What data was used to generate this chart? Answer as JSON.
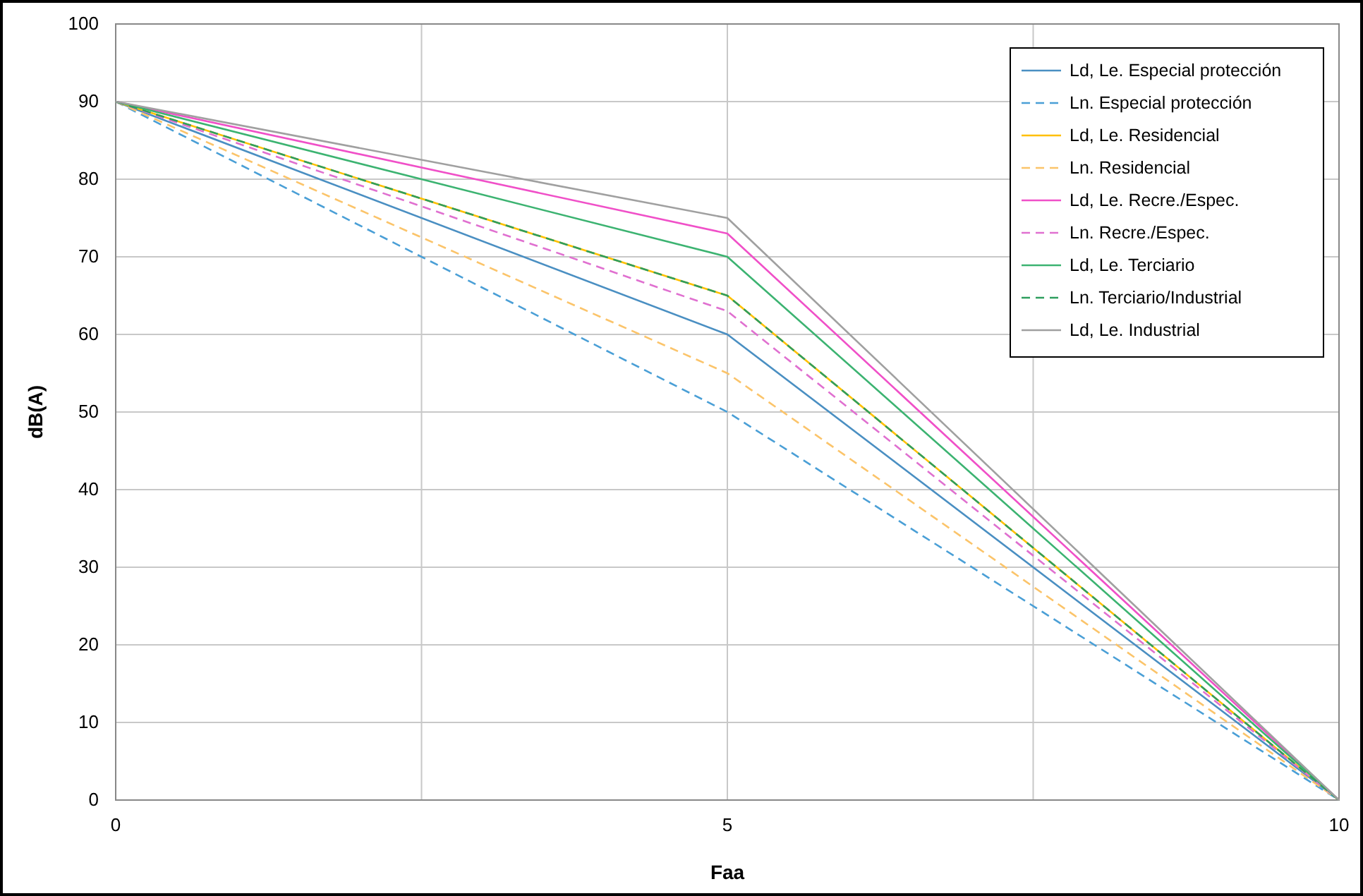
{
  "chart_data": {
    "type": "line",
    "xlabel": "Faa",
    "ylabel": "dB(A)",
    "x": [
      0,
      5,
      10
    ],
    "xlim": [
      0,
      10
    ],
    "xticks": [
      0,
      {
        "value": 2.5,
        "label": null
      },
      5,
      {
        "value": 7.5,
        "label": null
      },
      10
    ],
    "ylim": [
      0,
      100
    ],
    "yticks": [
      0,
      10,
      20,
      30,
      40,
      50,
      60,
      70,
      80,
      90,
      100
    ],
    "grid": true,
    "legend": "top right",
    "marker": "none",
    "series": [
      {
        "name": "Ld, Le. Especial protección",
        "color": "#4a8fc2",
        "line_style": "solid",
        "values": [
          90,
          60,
          0
        ]
      },
      {
        "name": "Ln. Especial protección",
        "color": "#4a9fd6",
        "line_style": "dashed",
        "values": [
          90,
          50,
          0
        ]
      },
      {
        "name": "Ld, Le. Residencial",
        "color": "#ffc000",
        "line_style": "solid",
        "values": [
          90,
          65,
          0
        ]
      },
      {
        "name": "Ln. Residencial",
        "color": "#fbc46a",
        "line_style": "dashed",
        "values": [
          90,
          55,
          0
        ]
      },
      {
        "name": "Ld, Le. Recre./Espec.",
        "color": "#f050c8",
        "line_style": "solid",
        "values": [
          90,
          73,
          0
        ]
      },
      {
        "name": "Ln. Recre./Espec.",
        "color": "#e070d0",
        "line_style": "dashed",
        "values": [
          90,
          63,
          0
        ]
      },
      {
        "name": "Ld, Le. Terciario",
        "color": "#3cb371",
        "line_style": "solid",
        "values": [
          90,
          70,
          0
        ]
      },
      {
        "name": "Ln. Terciario/Industrial",
        "color": "#2e9e5e",
        "line_style": "dashed",
        "values": [
          90,
          65,
          0
        ]
      },
      {
        "name": "Ld, Le. Industrial",
        "color": "#a0a0a0",
        "line_style": "solid",
        "values": [
          90,
          75,
          0
        ]
      }
    ]
  }
}
